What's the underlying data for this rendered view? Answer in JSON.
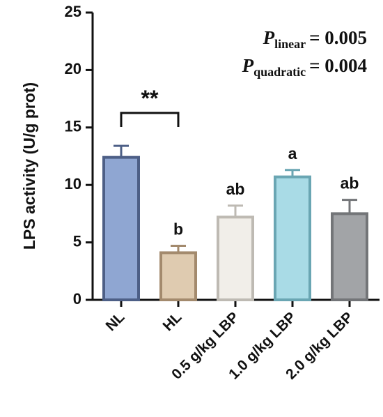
{
  "chart_data": {
    "type": "bar",
    "ylabel": "LPS activity (U/g prot)",
    "ylim": [
      0,
      25
    ],
    "yticks": [
      0,
      5,
      10,
      15,
      20,
      25
    ],
    "categories": [
      "NL",
      "HL",
      "0.5 g/kg LBP",
      "1.0 g/kg LBP",
      "2.0 g/kg LBP"
    ],
    "values": [
      12.4,
      4.1,
      7.2,
      10.7,
      7.5
    ],
    "errors": [
      1.0,
      0.6,
      1.0,
      0.6,
      1.2
    ],
    "letters": [
      "",
      "b",
      "ab",
      "a",
      "ab"
    ],
    "fill_colors": [
      "#8fa6d2",
      "#dfcbb0",
      "#f1eee9",
      "#a9dbe6",
      "#a2a4a7"
    ],
    "edge_colors": [
      "#4d5f86",
      "#a38a6d",
      "#bebab3",
      "#6aa6b3",
      "#737578"
    ],
    "annotations": {
      "bracket_label": "**",
      "p_linear": {
        "P": "P",
        "sub": "linear",
        "eq": "= 0.005"
      },
      "p_quadratic": {
        "P": "P",
        "sub": "quadratic",
        "eq": "= 0.004"
      }
    },
    "grid": false,
    "legend": "none"
  }
}
